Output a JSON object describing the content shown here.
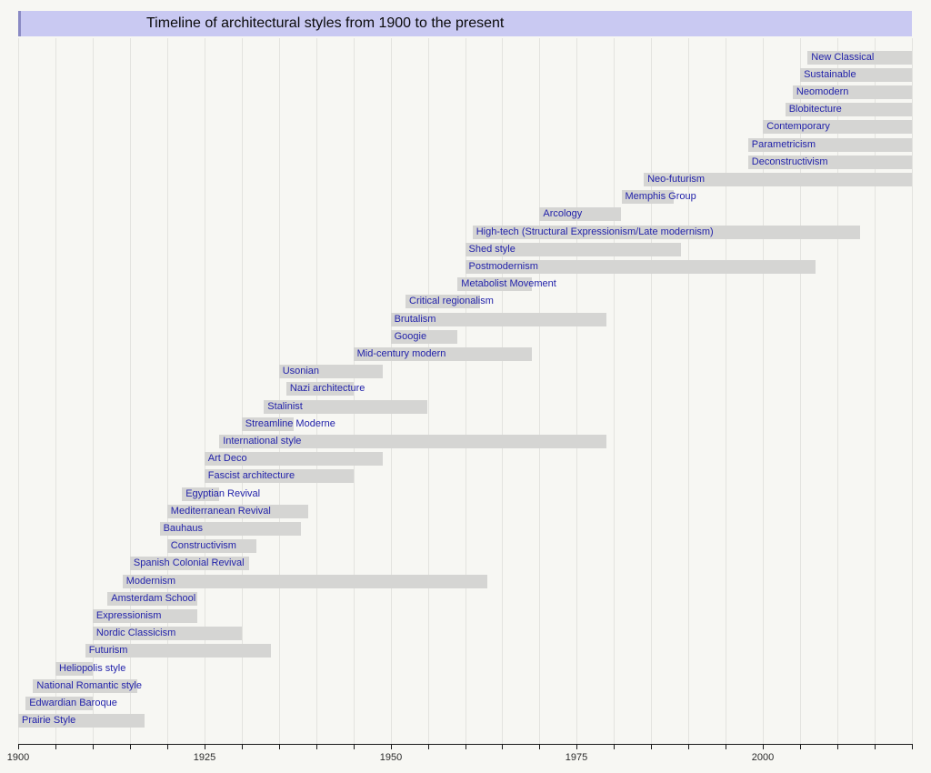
{
  "colors": {
    "background": "#f7f7f3",
    "title_bg": "#c9c9f2",
    "title_edge": "#8a8ac4",
    "bar": "#d5d5d3",
    "bar_label_text": "#2222aa",
    "gridline": "#e3e3df",
    "axis": "#1a1a1a"
  },
  "chart_data": {
    "type": "timeline",
    "title": "Timeline of architectural styles from 1900 to the present",
    "xlabel": "",
    "ylabel": "",
    "x_axis": {
      "min": 1900,
      "max": 2020,
      "gridline_interval_years": 5,
      "tick_interval_years": 5,
      "labeled_ticks": [
        1900,
        1925,
        1950,
        1975,
        2000
      ]
    },
    "legend": "none",
    "grid": "vertical",
    "bars": [
      {
        "label": "New Classical",
        "start": 2006,
        "end": 2020
      },
      {
        "label": "Sustainable",
        "start": 2005,
        "end": 2020
      },
      {
        "label": "Neomodern",
        "start": 2004,
        "end": 2020
      },
      {
        "label": "Blobitecture",
        "start": 2003,
        "end": 2020
      },
      {
        "label": "Contemporary",
        "start": 2000,
        "end": 2020
      },
      {
        "label": "Parametricism",
        "start": 1998,
        "end": 2020
      },
      {
        "label": "Deconstructivism",
        "start": 1998,
        "end": 2020
      },
      {
        "label": "Neo-futurism",
        "start": 1984,
        "end": 2020
      },
      {
        "label": "Memphis Group",
        "start": 1981,
        "end": 1988
      },
      {
        "label": "Arcology",
        "start": 1970,
        "end": 1981
      },
      {
        "label": "High-tech (Structural Expressionism/Late modernism)",
        "start": 1961,
        "end": 2013
      },
      {
        "label": "Shed style",
        "start": 1960,
        "end": 1989
      },
      {
        "label": "Postmodernism",
        "start": 1960,
        "end": 2007
      },
      {
        "label": "Metabolist Movement",
        "start": 1959,
        "end": 1969
      },
      {
        "label": "Critical regionalism",
        "start": 1952,
        "end": 1962
      },
      {
        "label": "Brutalism",
        "start": 1950,
        "end": 1979
      },
      {
        "label": "Googie",
        "start": 1950,
        "end": 1959
      },
      {
        "label": "Mid-century modern",
        "start": 1945,
        "end": 1969
      },
      {
        "label": "Usonian",
        "start": 1935,
        "end": 1949
      },
      {
        "label": "Nazi architecture",
        "start": 1936,
        "end": 1945
      },
      {
        "label": "Stalinist",
        "start": 1933,
        "end": 1955
      },
      {
        "label": "Streamline Moderne",
        "start": 1930,
        "end": 1937
      },
      {
        "label": "International style",
        "start": 1927,
        "end": 1979
      },
      {
        "label": "Art Deco",
        "start": 1925,
        "end": 1949
      },
      {
        "label": "Fascist architecture",
        "start": 1925,
        "end": 1945
      },
      {
        "label": "Egyptian Revival",
        "start": 1922,
        "end": 1927
      },
      {
        "label": "Mediterranean Revival",
        "start": 1920,
        "end": 1939
      },
      {
        "label": "Bauhaus",
        "start": 1919,
        "end": 1938
      },
      {
        "label": "Constructivism",
        "start": 1920,
        "end": 1932
      },
      {
        "label": "Spanish Colonial Revival",
        "start": 1915,
        "end": 1931
      },
      {
        "label": "Modernism",
        "start": 1914,
        "end": 1963
      },
      {
        "label": "Amsterdam School",
        "start": 1912,
        "end": 1924
      },
      {
        "label": "Expressionism",
        "start": 1910,
        "end": 1924
      },
      {
        "label": "Nordic Classicism",
        "start": 1910,
        "end": 1930
      },
      {
        "label": "Futurism",
        "start": 1909,
        "end": 1934
      },
      {
        "label": "Heliopolis style",
        "start": 1905,
        "end": 1910
      },
      {
        "label": "National Romantic style",
        "start": 1902,
        "end": 1916
      },
      {
        "label": "Edwardian Baroque",
        "start": 1901,
        "end": 1910
      },
      {
        "label": "Prairie Style",
        "start": 1900,
        "end": 1917
      }
    ]
  }
}
